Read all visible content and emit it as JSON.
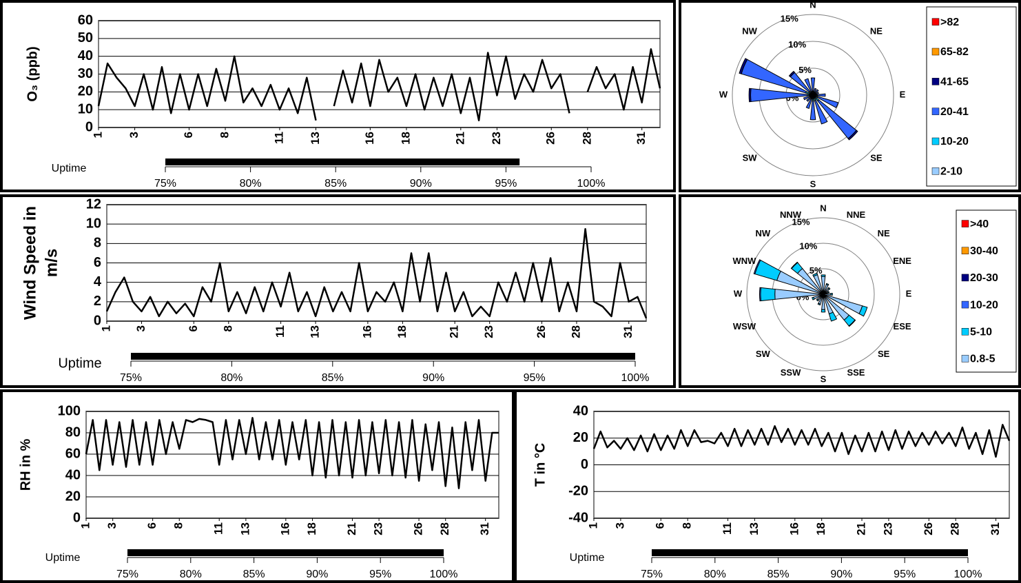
{
  "chart_data": [
    {
      "type": "line",
      "ylabel": [
        "O₃ (ppb)"
      ],
      "color": "#000000",
      "grid": true,
      "x": [
        1,
        1.5,
        2,
        2.5,
        3,
        3.5,
        4,
        4.5,
        5,
        5.5,
        6,
        6.5,
        7,
        7.5,
        8,
        8.5,
        9,
        9.5,
        10,
        10.5,
        11,
        11.5,
        12,
        12.5,
        13,
        13.5,
        14,
        14.5,
        15,
        15.5,
        16,
        16.5,
        17,
        17.5,
        18,
        18.5,
        19,
        19.5,
        20,
        20.5,
        21,
        21.5,
        22,
        22.5,
        23,
        23.5,
        24,
        24.5,
        25,
        25.5,
        26,
        26.5,
        27,
        27.5,
        28,
        28.5,
        29,
        29.5,
        30,
        30.5,
        31,
        31.5,
        32
      ],
      "values": [
        12,
        36,
        28,
        22,
        12,
        30,
        10,
        34,
        8,
        30,
        10,
        30,
        12,
        33,
        15,
        40,
        14,
        22,
        12,
        24,
        10,
        22,
        8,
        28,
        4,
        null,
        12,
        32,
        14,
        36,
        12,
        38,
        20,
        28,
        12,
        30,
        10,
        28,
        12,
        30,
        8,
        28,
        4,
        42,
        18,
        40,
        16,
        30,
        20,
        38,
        22,
        30,
        8,
        null,
        20,
        34,
        22,
        30,
        10,
        34,
        14,
        44,
        22
      ],
      "xlim": [
        1,
        32
      ],
      "xticks": [
        1,
        3,
        6,
        8,
        11,
        13,
        16,
        18,
        21,
        23,
        26,
        28,
        31
      ],
      "ylim": [
        0,
        60
      ],
      "yticks": [
        0,
        10,
        20,
        30,
        40,
        50,
        60
      ],
      "uptime": {
        "label": "Uptime",
        "value": 95.8,
        "lim": [
          75,
          100
        ],
        "ticks": [
          {
            "value": 75,
            "label": "75%"
          },
          {
            "value": 80,
            "label": "80%"
          },
          {
            "value": 85,
            "label": "85%"
          },
          {
            "value": 90,
            "label": "90%"
          },
          {
            "value": 95,
            "label": "95%"
          },
          {
            "value": 100,
            "label": "100%"
          }
        ]
      }
    },
    {
      "type": "windrose",
      "legend": "right",
      "directions": [
        "N",
        null,
        "NE",
        null,
        "E",
        null,
        "SE",
        null,
        "S",
        null,
        "SW",
        null,
        "W",
        null,
        "NW",
        null
      ],
      "rlim": [
        0,
        15
      ],
      "rticks": [
        {
          "value": 0,
          "label": "0%"
        },
        {
          "value": 5,
          "label": "5%"
        },
        {
          "value": 10,
          "label": "10%"
        },
        {
          "value": 15,
          "label": "15%"
        }
      ],
      "series": [
        {
          "name": ">82",
          "color": "#ff0000",
          "values": [
            0,
            0,
            0,
            0,
            0,
            0,
            0,
            0,
            0,
            0,
            0,
            0,
            0,
            0,
            0,
            0
          ]
        },
        {
          "name": "65-82",
          "color": "#ff9900",
          "values": [
            0,
            0,
            0,
            0,
            0,
            0,
            0,
            0,
            0,
            0,
            0,
            0,
            0,
            0,
            0,
            0
          ]
        },
        {
          "name": "41-65",
          "color": "#000080",
          "values": [
            0,
            0,
            0,
            0,
            0,
            0,
            0.3,
            0,
            0,
            0,
            0,
            0,
            0.3,
            0.4,
            0.3,
            0
          ]
        },
        {
          "name": "20-41",
          "color": "#3366ff",
          "values": [
            2.5,
            0.8,
            0.8,
            0.6,
            1.5,
            4,
            9,
            4.5,
            3.5,
            1.8,
            1,
            1.2,
            10.5,
            12.5,
            4.5,
            2.5
          ]
        },
        {
          "name": "10-20",
          "color": "#00ccff",
          "values": [
            0.4,
            0.3,
            0.3,
            0.3,
            0.5,
            0.6,
            1,
            0.8,
            0.8,
            0.5,
            0.3,
            0.4,
            0.8,
            1,
            0.6,
            0.4
          ]
        },
        {
          "name": "2-10",
          "color": "#99ccff",
          "values": [
            0.3,
            0.2,
            0.2,
            0.2,
            0.3,
            0.3,
            0.4,
            0.3,
            0.3,
            0.3,
            0.2,
            0.2,
            0.3,
            0.4,
            0.3,
            0.3
          ]
        }
      ]
    },
    {
      "type": "line",
      "ylabel": [
        "Wind Speed in",
        "m/s"
      ],
      "color": "#000000",
      "grid": true,
      "x": [
        1,
        1.5,
        2,
        2.5,
        3,
        3.5,
        4,
        4.5,
        5,
        5.5,
        6,
        6.5,
        7,
        7.5,
        8,
        8.5,
        9,
        9.5,
        10,
        10.5,
        11,
        11.5,
        12,
        12.5,
        13,
        13.5,
        14,
        14.5,
        15,
        15.5,
        16,
        16.5,
        17,
        17.5,
        18,
        18.5,
        19,
        19.5,
        20,
        20.5,
        21,
        21.5,
        22,
        22.5,
        23,
        23.5,
        24,
        24.5,
        25,
        25.5,
        26,
        26.5,
        27,
        27.5,
        28,
        28.5,
        29,
        29.5,
        30,
        30.5,
        31,
        31.5,
        32
      ],
      "values": [
        1,
        3,
        4.5,
        2,
        1,
        2.5,
        0.5,
        2,
        0.8,
        1.8,
        0.5,
        3.5,
        2,
        6,
        1,
        3,
        0.8,
        3.5,
        1,
        4,
        1.5,
        5,
        1,
        3,
        0.5,
        3.5,
        1,
        3,
        1,
        6,
        1,
        3,
        2,
        4,
        1,
        7,
        2,
        7,
        1,
        5,
        1,
        3,
        0.5,
        1.5,
        0.5,
        4,
        2,
        5,
        2,
        6,
        2,
        6.5,
        1,
        4,
        1,
        9.5,
        2,
        1.5,
        0.5,
        6,
        2,
        2.5,
        0.3
      ],
      "xlim": [
        1,
        32
      ],
      "xticks": [
        1,
        3,
        6,
        8,
        11,
        13,
        16,
        18,
        21,
        23,
        26,
        28,
        31
      ],
      "ylim": [
        0,
        12
      ],
      "yticks": [
        0,
        2,
        4,
        6,
        8,
        10,
        12
      ],
      "uptime": {
        "label": "Uptime",
        "value": 100,
        "lim": [
          75,
          100
        ],
        "ticks": [
          {
            "value": 75,
            "label": "75%"
          },
          {
            "value": 80,
            "label": "80%"
          },
          {
            "value": 85,
            "label": "85%"
          },
          {
            "value": 90,
            "label": "90%"
          },
          {
            "value": 95,
            "label": "95%"
          },
          {
            "value": 100,
            "label": "100%"
          }
        ]
      }
    },
    {
      "type": "windrose",
      "legend": "right",
      "directions": [
        "N",
        "NNE",
        "NE",
        "ENE",
        "E",
        "ESE",
        "SE",
        "SSE",
        "S",
        "SSW",
        "SW",
        "WSW",
        "W",
        "WNW",
        "NW",
        "NNW"
      ],
      "rlim": [
        0,
        15
      ],
      "rticks": [
        {
          "value": 0,
          "label": "0%"
        },
        {
          "value": 5,
          "label": "5%"
        },
        {
          "value": 10,
          "label": "10%"
        },
        {
          "value": 15,
          "label": "15%"
        }
      ],
      "series": [
        {
          "name": ">40",
          "color": "#ff0000",
          "values": [
            0,
            0,
            0,
            0,
            0,
            0,
            0,
            0,
            0,
            0,
            0,
            0,
            0,
            0,
            0,
            0
          ]
        },
        {
          "name": "30-40",
          "color": "#ff9900",
          "values": [
            0,
            0,
            0,
            0,
            0,
            0,
            0,
            0,
            0,
            0,
            0,
            0,
            0,
            0,
            0,
            0
          ]
        },
        {
          "name": "20-30",
          "color": "#000080",
          "values": [
            0,
            0,
            0,
            0,
            0,
            0,
            0,
            0,
            0,
            0,
            0,
            0,
            0,
            0,
            0,
            0
          ]
        },
        {
          "name": "10-20",
          "color": "#3366ff",
          "values": [
            0,
            0,
            0,
            0,
            0,
            0,
            0.1,
            0,
            0,
            0,
            0,
            0,
            0.2,
            0.2,
            0.1,
            0
          ]
        },
        {
          "name": "5-10",
          "color": "#00ccff",
          "values": [
            0.3,
            0.2,
            0.2,
            0.2,
            0.3,
            1,
            1.5,
            1.5,
            0.5,
            0.2,
            0.2,
            0.3,
            2.8,
            4.5,
            1.5,
            0.3
          ]
        },
        {
          "name": "0.8-5",
          "color": "#99ccff",
          "values": [
            3.5,
            2,
            1.5,
            1,
            1.5,
            8,
            6.5,
            4,
            3,
            2,
            1.5,
            2,
            9.5,
            9.5,
            6.5,
            4
          ]
        }
      ]
    },
    {
      "type": "line",
      "ylabel": [
        "RH in %"
      ],
      "color": "#000000",
      "grid": true,
      "x": [
        1,
        1.5,
        2,
        2.5,
        3,
        3.5,
        4,
        4.5,
        5,
        5.5,
        6,
        6.5,
        7,
        7.5,
        8,
        8.5,
        9,
        9.5,
        10,
        10.5,
        11,
        11.5,
        12,
        12.5,
        13,
        13.5,
        14,
        14.5,
        15,
        15.5,
        16,
        16.5,
        17,
        17.5,
        18,
        18.5,
        19,
        19.5,
        20,
        20.5,
        21,
        21.5,
        22,
        22.5,
        23,
        23.5,
        24,
        24.5,
        25,
        25.5,
        26,
        26.5,
        27,
        27.5,
        28,
        28.5,
        29,
        29.5,
        30,
        30.5,
        31,
        31.5,
        32
      ],
      "values": [
        60,
        92,
        45,
        92,
        50,
        90,
        48,
        92,
        50,
        90,
        50,
        92,
        60,
        90,
        65,
        92,
        90,
        93,
        92,
        90,
        50,
        92,
        55,
        92,
        60,
        94,
        55,
        90,
        55,
        92,
        50,
        90,
        55,
        92,
        40,
        90,
        38,
        92,
        40,
        90,
        38,
        92,
        40,
        90,
        42,
        92,
        40,
        90,
        38,
        92,
        35,
        88,
        45,
        90,
        30,
        85,
        28,
        90,
        45,
        92,
        35,
        80,
        80
      ],
      "xlim": [
        1,
        32
      ],
      "xticks": [
        1,
        3,
        6,
        8,
        11,
        13,
        16,
        18,
        21,
        23,
        26,
        28,
        31
      ],
      "ylim": [
        0,
        100
      ],
      "yticks": [
        0,
        20,
        40,
        60,
        80,
        100
      ],
      "uptime": {
        "label": "Uptime",
        "value": 100,
        "lim": [
          75,
          100
        ],
        "ticks": [
          {
            "value": 75,
            "label": "75%"
          },
          {
            "value": 80,
            "label": "80%"
          },
          {
            "value": 85,
            "label": "85%"
          },
          {
            "value": 90,
            "label": "90%"
          },
          {
            "value": 95,
            "label": "95%"
          },
          {
            "value": 100,
            "label": "100%"
          }
        ]
      }
    },
    {
      "type": "line",
      "ylabel": [
        "T in °C"
      ],
      "color": "#000000",
      "grid": true,
      "x": [
        1,
        1.5,
        2,
        2.5,
        3,
        3.5,
        4,
        4.5,
        5,
        5.5,
        6,
        6.5,
        7,
        7.5,
        8,
        8.5,
        9,
        9.5,
        10,
        10.5,
        11,
        11.5,
        12,
        12.5,
        13,
        13.5,
        14,
        14.5,
        15,
        15.5,
        16,
        16.5,
        17,
        17.5,
        18,
        18.5,
        19,
        19.5,
        20,
        20.5,
        21,
        21.5,
        22,
        22.5,
        23,
        23.5,
        24,
        24.5,
        25,
        25.5,
        26,
        26.5,
        27,
        27.5,
        28,
        28.5,
        29,
        29.5,
        30,
        30.5,
        31,
        31.5,
        32
      ],
      "values": [
        12,
        25,
        13,
        18,
        12,
        20,
        11,
        22,
        10,
        23,
        11,
        22,
        12,
        26,
        14,
        26,
        17,
        18,
        16,
        24,
        14,
        27,
        14,
        26,
        15,
        27,
        15,
        29,
        17,
        27,
        15,
        26,
        15,
        27,
        14,
        24,
        10,
        24,
        8,
        22,
        10,
        24,
        10,
        25,
        11,
        26,
        12,
        25,
        14,
        24,
        15,
        25,
        16,
        24,
        14,
        28,
        12,
        24,
        8,
        26,
        6,
        30,
        18
      ],
      "xlim": [
        1,
        32
      ],
      "xticks": [
        1,
        3,
        6,
        8,
        11,
        13,
        16,
        18,
        21,
        23,
        26,
        28,
        31
      ],
      "ylim": [
        -40,
        40
      ],
      "yticks": [
        -40,
        -20,
        0,
        20,
        40
      ],
      "uptime": {
        "label": "Uptime",
        "value": 100,
        "lim": [
          75,
          100
        ],
        "ticks": [
          {
            "value": 75,
            "label": "75%"
          },
          {
            "value": 80,
            "label": "80%"
          },
          {
            "value": 85,
            "label": "85%"
          },
          {
            "value": 90,
            "label": "90%"
          },
          {
            "value": 95,
            "label": "95%"
          },
          {
            "value": 100,
            "label": "100%"
          }
        ]
      }
    }
  ]
}
